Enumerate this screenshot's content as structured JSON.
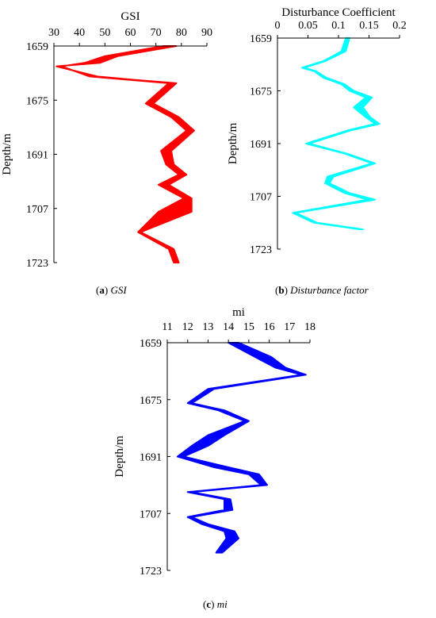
{
  "figure": {
    "captions": [
      {
        "letter": "a",
        "text": "GSI"
      },
      {
        "letter": "b",
        "text": "Disturbance factor"
      },
      {
        "letter": "c",
        "text": "mi"
      }
    ]
  },
  "chart_data": [
    {
      "id": "a",
      "type": "area",
      "title": "GSI",
      "xlabel": "",
      "ylabel": "Depth/m",
      "xlim": [
        30,
        90
      ],
      "ylim": [
        1659,
        1723
      ],
      "y_reversed": true,
      "x_ticks": [
        30,
        40,
        50,
        60,
        70,
        80,
        90
      ],
      "y_ticks": [
        1659,
        1675,
        1691,
        1707,
        1723
      ],
      "color": "#ff0000",
      "band": {
        "depth": [
          1659,
          1662,
          1664,
          1665,
          1668,
          1669,
          1670,
          1676,
          1680,
          1684,
          1690,
          1694,
          1697,
          1700,
          1704,
          1708,
          1714,
          1719,
          1723
        ],
        "left": [
          73,
          50,
          42,
          33,
          44,
          60,
          75,
          66,
          76,
          82,
          72,
          74,
          79,
          71,
          81,
          71,
          63,
          75,
          77
        ],
        "right": [
          78,
          55,
          48,
          31,
          47,
          62,
          78,
          69,
          79,
          85,
          76,
          77,
          82,
          75,
          84,
          84,
          64,
          77,
          79
        ]
      }
    },
    {
      "id": "b",
      "type": "area",
      "title": "Disturbance Coefficient",
      "xlabel": "",
      "ylabel": "Depth/m",
      "xlim": [
        0,
        0.2
      ],
      "ylim": [
        1659,
        1723
      ],
      "y_reversed": true,
      "x_ticks": [
        "0",
        "0.05",
        "0.1",
        "0.15",
        "0.2"
      ],
      "x_tick_values": [
        0,
        0.05,
        0.1,
        0.15,
        0.2
      ],
      "y_ticks": [
        1659,
        1675,
        1691,
        1707,
        1723
      ],
      "color": "#00ffff",
      "band": {
        "depth": [
          1659,
          1663,
          1666,
          1668,
          1669,
          1671,
          1673,
          1675,
          1677,
          1680,
          1683,
          1685,
          1687,
          1691,
          1694,
          1697,
          1701,
          1703,
          1706,
          1708,
          1712,
          1715,
          1717
        ],
        "left": [
          0.112,
          0.105,
          0.075,
          0.04,
          0.06,
          0.075,
          0.105,
          0.118,
          0.145,
          0.125,
          0.145,
          0.16,
          0.115,
          0.047,
          0.11,
          0.155,
          0.082,
          0.078,
          0.11,
          0.148,
          0.025,
          0.06,
          0.135
        ],
        "right": [
          0.118,
          0.112,
          0.078,
          0.044,
          0.063,
          0.08,
          0.11,
          0.125,
          0.155,
          0.14,
          0.152,
          0.167,
          0.12,
          0.052,
          0.113,
          0.16,
          0.092,
          0.085,
          0.118,
          0.16,
          0.03,
          0.065,
          0.14
        ]
      }
    },
    {
      "id": "c",
      "type": "area",
      "title": "mi",
      "xlabel": "",
      "ylabel": "Depth/m",
      "xlim": [
        11,
        18
      ],
      "ylim": [
        1659,
        1723
      ],
      "y_reversed": true,
      "x_ticks": [
        11,
        12,
        13,
        14,
        15,
        16,
        17,
        18
      ],
      "y_ticks": [
        1659,
        1675,
        1691,
        1707,
        1723
      ],
      "color": "#0000ff",
      "band": {
        "depth": [
          1659,
          1663,
          1666,
          1668,
          1672,
          1676,
          1678,
          1681,
          1685,
          1688,
          1691,
          1694,
          1696,
          1699,
          1701,
          1703,
          1706,
          1708,
          1710,
          1712,
          1714,
          1718
        ],
        "left": [
          14.0,
          15.3,
          16.3,
          17.6,
          13.0,
          12.0,
          13.5,
          14.8,
          13.0,
          12.2,
          11.5,
          13.3,
          15.0,
          15.6,
          12.0,
          13.8,
          13.8,
          12.0,
          12.7,
          13.8,
          13.9,
          13.4
        ],
        "right": [
          14.5,
          16.1,
          16.8,
          17.8,
          13.3,
          12.2,
          13.8,
          15.0,
          13.8,
          13.0,
          11.8,
          14.0,
          15.5,
          15.9,
          12.2,
          14.1,
          14.2,
          12.2,
          13.0,
          14.3,
          14.5,
          13.7
        ]
      }
    }
  ]
}
